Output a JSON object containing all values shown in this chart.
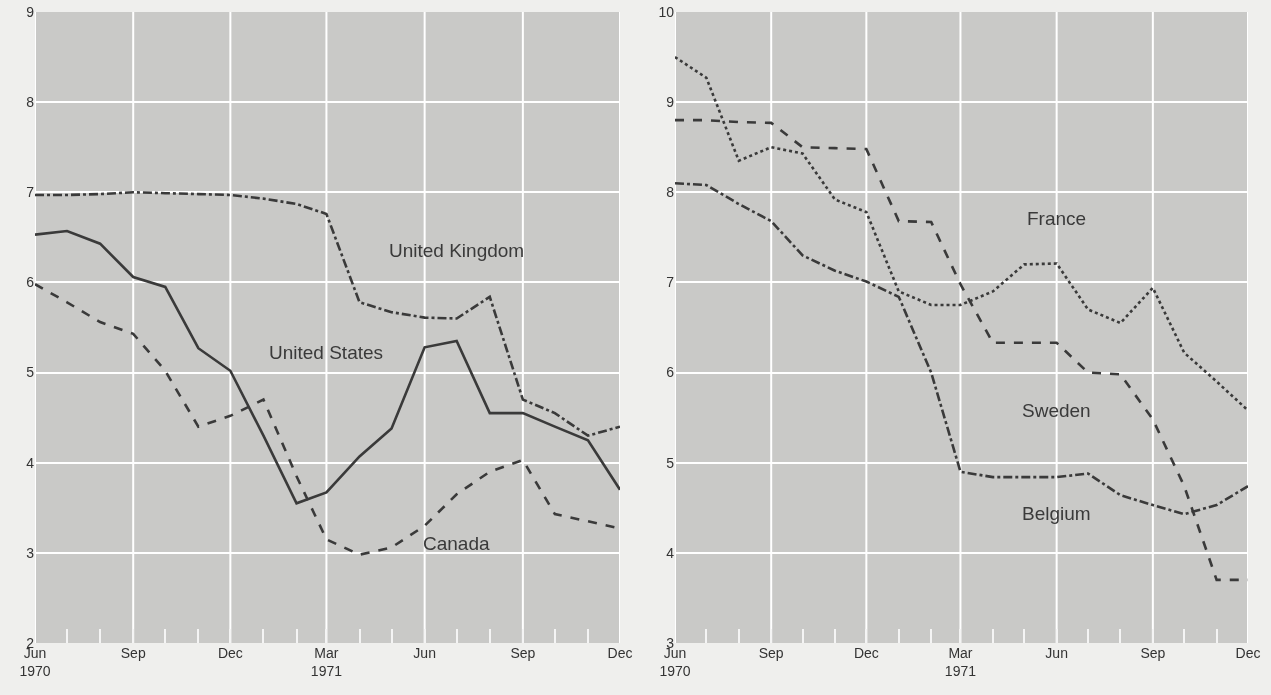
{
  "chart_data": [
    {
      "type": "line",
      "x": [
        "1970-06",
        "1970-07",
        "1970-08",
        "1970-09",
        "1970-10",
        "1970-11",
        "1970-12",
        "1971-01",
        "1971-02",
        "1971-03",
        "1971-04",
        "1971-05",
        "1971-06",
        "1971-07",
        "1971-08",
        "1971-09",
        "1971-10",
        "1971-11",
        "1971-12"
      ],
      "series": [
        {
          "name": "United Kingdom",
          "color": "#3a3a3a",
          "line_style": "dashdot",
          "values": [
            6.97,
            6.97,
            6.98,
            7.0,
            6.99,
            6.98,
            6.97,
            6.93,
            6.87,
            6.76,
            5.78,
            5.67,
            5.61,
            5.6,
            5.84,
            4.7,
            4.55,
            4.3,
            4.4
          ]
        },
        {
          "name": "United States",
          "color": "#3a3a3a",
          "line_style": "solid",
          "values": [
            6.53,
            6.57,
            6.43,
            6.06,
            5.95,
            5.27,
            5.02,
            4.3,
            3.55,
            3.67,
            4.07,
            4.38,
            5.28,
            5.35,
            4.55,
            4.55,
            4.4,
            4.25,
            3.7
          ]
        },
        {
          "name": "Canada",
          "color": "#3a3a3a",
          "line_style": "dashed",
          "values": [
            5.98,
            5.78,
            5.56,
            5.43,
            5.02,
            4.4,
            4.52,
            4.7,
            3.85,
            3.15,
            2.98,
            3.06,
            3.3,
            3.65,
            3.9,
            4.03,
            3.43,
            3.35,
            3.27
          ]
        }
      ],
      "xlim": [
        "1970-06",
        "1971-12"
      ],
      "xticks": [
        {
          "value": "1970-06",
          "label": "Jun\n1970"
        },
        {
          "value": "1970-07",
          "label": null
        },
        {
          "value": "1970-08",
          "label": null
        },
        {
          "value": "1970-09",
          "label": "Sep"
        },
        {
          "value": "1970-10",
          "label": null
        },
        {
          "value": "1970-11",
          "label": null
        },
        {
          "value": "1970-12",
          "label": "Dec"
        },
        {
          "value": "1971-01",
          "label": null
        },
        {
          "value": "1971-02",
          "label": null
        },
        {
          "value": "1971-03",
          "label": "Mar\n1971"
        },
        {
          "value": "1971-04",
          "label": null
        },
        {
          "value": "1971-05",
          "label": null
        },
        {
          "value": "1971-06",
          "label": "Jun"
        },
        {
          "value": "1971-07",
          "label": null
        },
        {
          "value": "1971-08",
          "label": null
        },
        {
          "value": "1971-09",
          "label": "Sep"
        },
        {
          "value": "1971-10",
          "label": null
        },
        {
          "value": "1971-11",
          "label": null
        },
        {
          "value": "1971-12",
          "label": "Dec"
        }
      ],
      "ylim": [
        2,
        9
      ],
      "yticks": [
        2,
        3,
        4,
        5,
        6,
        7,
        8,
        9
      ],
      "grid": true,
      "legend": false,
      "marker": "none"
    },
    {
      "type": "line",
      "x": [
        "1970-06",
        "1970-07",
        "1970-08",
        "1970-09",
        "1970-10",
        "1970-11",
        "1970-12",
        "1971-01",
        "1971-02",
        "1971-03",
        "1971-04",
        "1971-05",
        "1971-06",
        "1971-07",
        "1971-08",
        "1971-09",
        "1971-10",
        "1971-11",
        "1971-12"
      ],
      "series": [
        {
          "name": "France",
          "color": "#3a3a3a",
          "line_style": "dotted",
          "values": [
            9.5,
            9.27,
            8.35,
            8.5,
            8.43,
            7.92,
            7.78,
            6.9,
            6.75,
            6.75,
            6.9,
            7.2,
            7.21,
            6.7,
            6.55,
            6.94,
            6.22,
            5.9,
            5.58
          ]
        },
        {
          "name": "Sweden",
          "color": "#3a3a3a",
          "line_style": "dashed",
          "values": [
            8.8,
            8.8,
            8.78,
            8.77,
            8.5,
            8.49,
            8.48,
            7.68,
            7.67,
            6.98,
            6.33,
            6.33,
            6.33,
            6.0,
            5.98,
            5.48,
            4.74,
            3.7,
            3.7
          ]
        },
        {
          "name": "Belgium",
          "color": "#3a3a3a",
          "line_style": "dashdot",
          "values": [
            8.1,
            8.08,
            7.87,
            7.68,
            7.3,
            7.13,
            7.01,
            6.84,
            6.0,
            4.9,
            4.84,
            4.84,
            4.84,
            4.88,
            4.64,
            4.53,
            4.43,
            4.53,
            4.74
          ]
        }
      ],
      "xlim": [
        "1970-06",
        "1971-12"
      ],
      "xticks": [
        {
          "value": "1970-06",
          "label": "Jun\n1970"
        },
        {
          "value": "1970-07",
          "label": null
        },
        {
          "value": "1970-08",
          "label": null
        },
        {
          "value": "1970-09",
          "label": "Sep"
        },
        {
          "value": "1970-10",
          "label": null
        },
        {
          "value": "1970-11",
          "label": null
        },
        {
          "value": "1970-12",
          "label": "Dec"
        },
        {
          "value": "1971-01",
          "label": null
        },
        {
          "value": "1971-02",
          "label": null
        },
        {
          "value": "1971-03",
          "label": "Mar\n1971"
        },
        {
          "value": "1971-04",
          "label": null
        },
        {
          "value": "1971-05",
          "label": null
        },
        {
          "value": "1971-06",
          "label": "Jun"
        },
        {
          "value": "1971-07",
          "label": null
        },
        {
          "value": "1971-08",
          "label": null
        },
        {
          "value": "1971-09",
          "label": "Sep"
        },
        {
          "value": "1971-10",
          "label": null
        },
        {
          "value": "1971-11",
          "label": null
        },
        {
          "value": "1971-12",
          "label": "Dec"
        }
      ],
      "ylim": [
        3,
        10
      ],
      "yticks": [
        3,
        4,
        5,
        6,
        7,
        8,
        9,
        10
      ],
      "grid": true,
      "legend": false,
      "marker": "none"
    }
  ]
}
